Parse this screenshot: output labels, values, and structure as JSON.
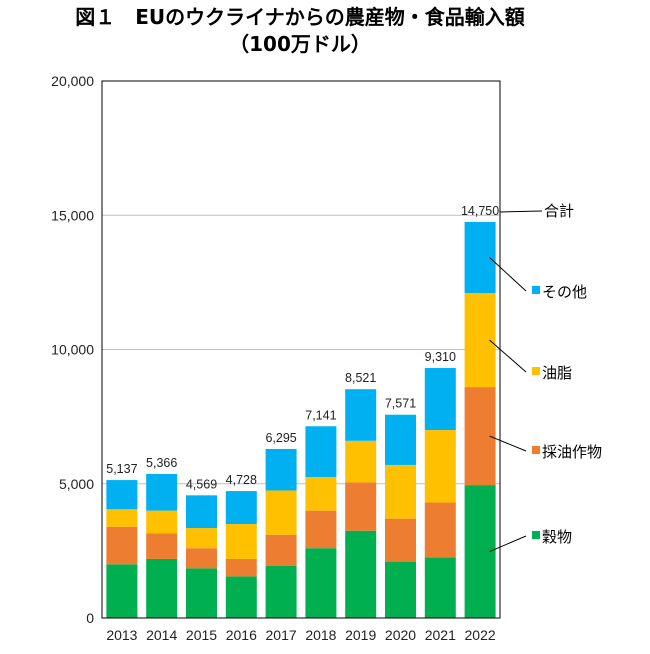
{
  "title": {
    "line1": "図１　EUのウクライナからの農産物・食品輸入額",
    "line2": "（100万ドル）"
  },
  "colors": {
    "grains": "#00b050",
    "oilseeds": "#ed7d31",
    "oils": "#ffc000",
    "other": "#00b0f0",
    "gridline": "#bfbfbf",
    "frame": "#000000"
  },
  "chart_data": {
    "type": "bar",
    "stacked": true,
    "categories": [
      "2013",
      "2014",
      "2015",
      "2016",
      "2017",
      "2018",
      "2019",
      "2020",
      "2021",
      "2022"
    ],
    "ylim": [
      0,
      20000
    ],
    "yticks": [
      "0",
      "5,000",
      "10,000",
      "15,000",
      "20,000"
    ],
    "ytick_values": [
      0,
      5000,
      10000,
      15000,
      20000
    ],
    "grid": true,
    "series": [
      {
        "name": "穀物",
        "color": "#00b050",
        "values": [
          2000,
          2200,
          1850,
          1550,
          1950,
          2600,
          3250,
          2100,
          2250,
          4950
        ]
      },
      {
        "name": "採油作物",
        "color": "#ed7d31",
        "values": [
          1400,
          950,
          750,
          650,
          1150,
          1400,
          1800,
          1600,
          2050,
          3650
        ]
      },
      {
        "name": "油脂",
        "color": "#ffc000",
        "values": [
          650,
          850,
          750,
          1300,
          1650,
          1250,
          1550,
          2000,
          2700,
          3500
        ]
      },
      {
        "name": "その他",
        "color": "#00b0f0",
        "values": [
          1087,
          1366,
          1219,
          1228,
          1545,
          1891,
          1921,
          1871,
          2310,
          2650
        ]
      }
    ],
    "totals": [
      5137,
      5366,
      4569,
      4728,
      6295,
      7141,
      8521,
      7571,
      9310,
      14750
    ],
    "total_labels": [
      "5,137",
      "5,366",
      "4,569",
      "4,728",
      "6,295",
      "7,141",
      "8,521",
      "7,571",
      "9,310",
      "14,750"
    ],
    "total_label": "合計",
    "legend_placement": "right, annotated beside 2022 bar"
  }
}
